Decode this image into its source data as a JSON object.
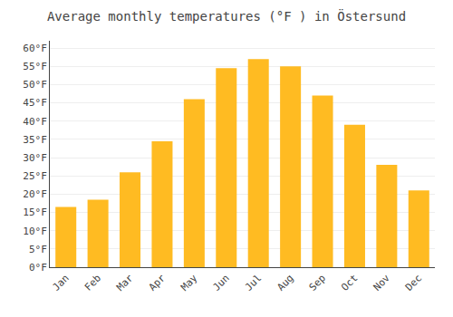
{
  "chart_data": {
    "type": "bar",
    "title": "Average monthly temperatures (°F ) in Östersund",
    "categories": [
      "Jan",
      "Feb",
      "Mar",
      "Apr",
      "May",
      "Jun",
      "Jul",
      "Aug",
      "Sep",
      "Oct",
      "Nov",
      "Dec"
    ],
    "values": [
      16.5,
      18.5,
      26.0,
      34.5,
      46.0,
      54.5,
      57.0,
      55.0,
      47.0,
      39.0,
      28.0,
      21.0
    ],
    "color": "#FFBB22",
    "ylim": [
      0,
      62
    ],
    "yticks": [
      {
        "value": 0,
        "label": "0°F"
      },
      {
        "value": 5,
        "label": "5°F"
      },
      {
        "value": 10,
        "label": "10°F"
      },
      {
        "value": 15,
        "label": "15°F"
      },
      {
        "value": 20,
        "label": "20°F"
      },
      {
        "value": 25,
        "label": "25°F"
      },
      {
        "value": 30,
        "label": "30°F"
      },
      {
        "value": 35,
        "label": "35°F"
      },
      {
        "value": 40,
        "label": "40°F"
      },
      {
        "value": 45,
        "label": "45°F"
      },
      {
        "value": 50,
        "label": "50°F"
      },
      {
        "value": 55,
        "label": "55°F"
      },
      {
        "value": 60,
        "label": "60°F"
      }
    ],
    "grid": true
  }
}
